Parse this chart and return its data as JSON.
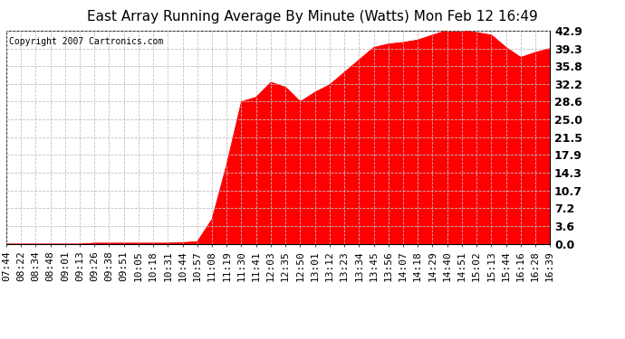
{
  "title": "East Array Running Average By Minute (Watts) Mon Feb 12 16:49",
  "copyright": "Copyright 2007 Cartronics.com",
  "background_color": "#ffffff",
  "plot_bg_color": "#ffffff",
  "fill_color": "#ff0000",
  "line_color": "#ff0000",
  "grid_color": "#c0c0c0",
  "y_ticks": [
    0.0,
    3.6,
    7.2,
    10.7,
    14.3,
    17.9,
    21.5,
    25.0,
    28.6,
    32.2,
    35.8,
    39.3,
    42.9
  ],
  "x_labels": [
    "07:44",
    "08:22",
    "08:34",
    "08:48",
    "09:01",
    "09:13",
    "09:26",
    "09:38",
    "09:51",
    "10:05",
    "10:18",
    "10:31",
    "10:44",
    "10:57",
    "11:08",
    "11:19",
    "11:30",
    "11:41",
    "12:03",
    "12:35",
    "12:50",
    "13:01",
    "13:12",
    "13:23",
    "13:34",
    "13:45",
    "13:56",
    "14:07",
    "14:18",
    "14:29",
    "14:40",
    "14:51",
    "15:02",
    "15:13",
    "15:44",
    "16:16",
    "16:28",
    "16:39"
  ],
  "series": [
    0.0,
    0.0,
    0.0,
    0.0,
    0.0,
    0.0,
    0.2,
    0.2,
    0.2,
    0.2,
    0.2,
    0.2,
    0.3,
    0.5,
    5.0,
    16.0,
    28.6,
    29.5,
    32.5,
    31.5,
    28.6,
    30.5,
    32.0,
    34.5,
    37.0,
    39.5,
    40.2,
    40.5,
    41.0,
    42.0,
    42.9,
    42.9,
    42.5,
    42.0,
    39.5,
    37.5,
    38.5,
    39.3
  ],
  "ylim": [
    0.0,
    42.9
  ],
  "title_fontsize": 11,
  "tick_fontsize": 8,
  "ytick_fontsize": 9,
  "copyright_fontsize": 7
}
